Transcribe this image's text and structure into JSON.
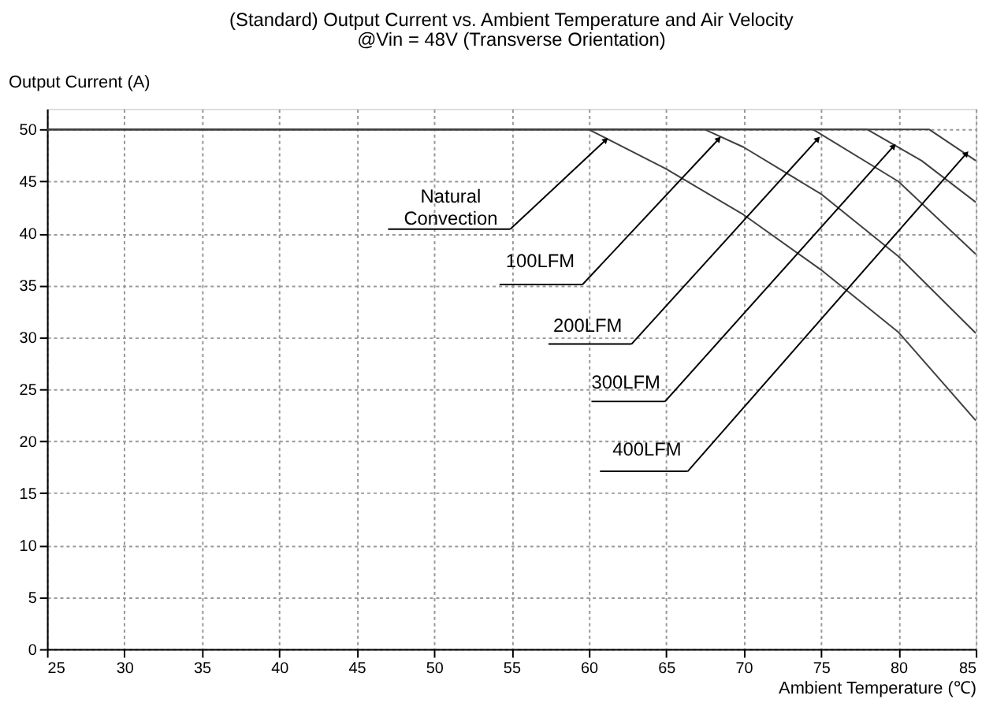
{
  "chart_data": {
    "type": "line",
    "title": "(Standard)  Output Current vs. Ambient Temperature and Air Velocity",
    "subtitle": "@Vin = 48V (Transverse  Orientation)",
    "xlabel": "Ambient Temperature (℃)",
    "ylabel": "Output Current (A)",
    "xlim": [
      25,
      85
    ],
    "xticks": [
      25,
      30,
      35,
      40,
      45,
      50,
      55,
      60,
      65,
      70,
      75,
      80,
      85
    ],
    "ylim": [
      0,
      52
    ],
    "yticks": [
      0,
      5,
      10,
      15,
      20,
      25,
      30,
      35,
      40,
      45,
      50
    ],
    "grid": true,
    "legend": false,
    "line_style": "solid",
    "marker": "none",
    "series": [
      {
        "color": "#404040",
        "x": [
          25,
          60,
          65,
          70,
          75,
          80,
          85
        ],
        "values": [
          50,
          50,
          46.2,
          41.8,
          36.5,
          30.5,
          22
        ]
      },
      {
        "color": "#404040",
        "x": [
          25,
          67.5,
          70,
          75,
          80,
          85
        ],
        "values": [
          50,
          50,
          48.3,
          43.8,
          37.8,
          30.4
        ]
      },
      {
        "color": "#404040",
        "x": [
          25,
          74.5,
          80,
          85
        ],
        "values": [
          50,
          50,
          45,
          38
        ]
      },
      {
        "color": "#404040",
        "x": [
          25,
          78,
          81.5,
          85
        ],
        "values": [
          50,
          50,
          47,
          43
        ]
      },
      {
        "color": "#404040",
        "x": [
          25,
          82,
          85
        ],
        "values": [
          50,
          50,
          47
        ]
      }
    ],
    "annotations": [
      {
        "text": "Natural\nConvection",
        "x": 61.1,
        "y": 49
      },
      {
        "text": "100LFM",
        "x": 68.4,
        "y": 49.1
      },
      {
        "text": "200LFM",
        "x": 74.8,
        "y": 49.1
      },
      {
        "text": "300LFM",
        "x": 79.7,
        "y": 48.4
      },
      {
        "text": "400LFM",
        "x": 84.4,
        "y": 47.7
      }
    ]
  }
}
